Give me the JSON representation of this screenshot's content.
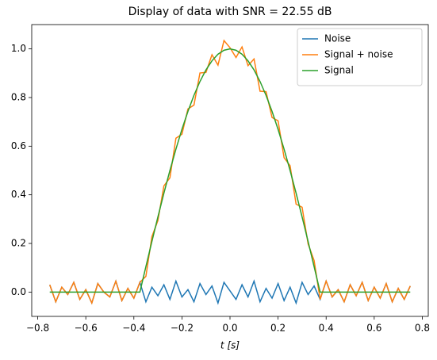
{
  "chart_data": {
    "type": "line",
    "title": "Display of data with SNR = 22.55 dB",
    "x_label": "t [s]",
    "x": [
      -0.75,
      -0.725,
      -0.7,
      -0.675,
      -0.65,
      -0.625,
      -0.6,
      -0.575,
      -0.55,
      -0.525,
      -0.5,
      -0.475,
      -0.45,
      -0.425,
      -0.4,
      -0.375,
      -0.35,
      -0.325,
      -0.3,
      -0.275,
      -0.25,
      -0.225,
      -0.2,
      -0.175,
      -0.15,
      -0.125,
      -0.1,
      -0.075,
      -0.05,
      -0.025,
      0,
      0.025,
      0.05,
      0.075,
      0.1,
      0.125,
      0.15,
      0.175,
      0.2,
      0.225,
      0.25,
      0.275,
      0.3,
      0.325,
      0.35,
      0.375,
      0.4,
      0.425,
      0.45,
      0.475,
      0.5,
      0.525,
      0.55,
      0.575,
      0.6,
      0.625,
      0.65,
      0.675,
      0.7,
      0.725,
      0.75
    ],
    "series": [
      {
        "name": "Noise",
        "color": "#1f77b4",
        "values": [
          0.03,
          -0.04,
          0.02,
          -0.01,
          0.04,
          -0.03,
          0.01,
          -0.045,
          0.035,
          0.0,
          -0.02,
          0.045,
          -0.035,
          0.015,
          -0.025,
          0.04,
          -0.04,
          0.02,
          -0.015,
          0.03,
          -0.03,
          0.045,
          -0.02,
          0.01,
          -0.04,
          0.035,
          -0.01,
          0.025,
          -0.045,
          0.04,
          0.005,
          -0.03,
          0.03,
          -0.02,
          0.045,
          -0.04,
          0.015,
          -0.025,
          0.035,
          -0.035,
          0.02,
          -0.045,
          0.04,
          -0.01,
          0.025,
          -0.03,
          0.045,
          -0.02,
          0.01,
          -0.04,
          0.03,
          -0.015,
          0.04,
          -0.035,
          0.02,
          -0.025,
          0.035,
          -0.04,
          0.015,
          -0.03,
          0.025
        ]
      },
      {
        "name": "Signal + noise",
        "color": "#ff7f0e",
        "values": [
          0.03,
          -0.04,
          0.02,
          -0.01,
          0.04,
          -0.03,
          0.01,
          -0.045,
          0.035,
          0.0,
          -0.02,
          0.045,
          -0.035,
          0.015,
          -0.025,
          0.04,
          0.0645,
          0.2279,
          0.294,
          0.4367,
          0.47,
          0.6328,
          0.6491,
          0.7531,
          0.769,
          0.901,
          0.9035,
          0.9761,
          0.9331,
          1.0345,
          1.005,
          0.9645,
          1.0081,
          0.9311,
          0.9585,
          0.826,
          0.824,
          0.7181,
          0.7041,
          0.5528,
          0.52,
          0.3617,
          0.349,
          0.1979,
          0.1295,
          -0.03,
          0.045,
          -0.02,
          0.01,
          -0.04,
          0.03,
          -0.015,
          0.04,
          -0.035,
          0.02,
          -0.025,
          0.035,
          -0.04,
          0.015,
          -0.03,
          0.025
        ]
      },
      {
        "name": "Signal",
        "color": "#2ca02c",
        "values": [
          0,
          0,
          0,
          0,
          0,
          0,
          0,
          0,
          0,
          0,
          0,
          0,
          0,
          0,
          0,
          0,
          0.1045,
          0.2079,
          0.309,
          0.4067,
          0.5,
          0.5878,
          0.6691,
          0.7431,
          0.809,
          0.866,
          0.9135,
          0.9511,
          0.9781,
          0.9945,
          1,
          0.9945,
          0.9781,
          0.9511,
          0.9135,
          0.866,
          0.809,
          0.7431,
          0.6691,
          0.5878,
          0.5,
          0.4067,
          0.309,
          0.2079,
          0.1045,
          0,
          0,
          0,
          0,
          0,
          0,
          0,
          0,
          0,
          0,
          0,
          0,
          0,
          0,
          0,
          0
        ]
      }
    ],
    "xlim": [
      -0.825,
      0.825
    ],
    "xticks": [
      {
        "value": -0.8,
        "label": "−0.8"
      },
      {
        "value": -0.6,
        "label": "−0.6"
      },
      {
        "value": -0.4,
        "label": "−0.4"
      },
      {
        "value": -0.2,
        "label": "−0.2"
      },
      {
        "value": 0,
        "label": "0.0"
      },
      0.2,
      0.4,
      0.6,
      0.8
    ],
    "ylim": [
      -0.1,
      1.1
    ],
    "yticks": [
      {
        "value": 0,
        "label": "0.0"
      },
      0.2,
      0.4,
      0.6,
      0.8,
      {
        "value": 1,
        "label": "1.0"
      }
    ],
    "legend": "upper right",
    "grid": false
  }
}
